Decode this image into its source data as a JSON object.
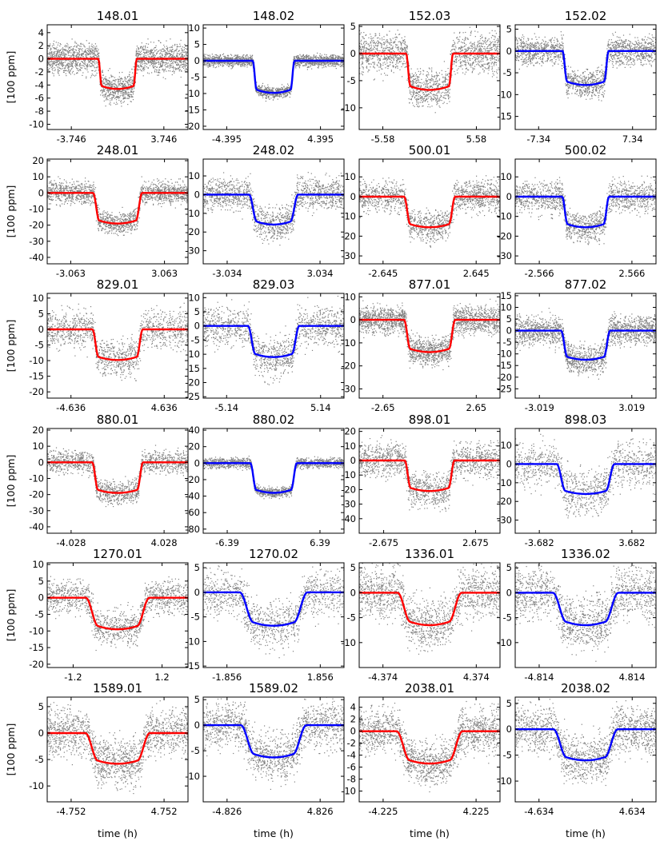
{
  "chart_data": [
    {
      "type": "scatter",
      "title": "148.01",
      "fit_color": "#ff0000",
      "xtick_labels": [
        "-3.746",
        "3.746"
      ],
      "xticks": [
        -3.746,
        3.746
      ],
      "xlim": [
        -5.7,
        5.7
      ],
      "ylim": [
        -10.8,
        5.2
      ],
      "yticks": [
        4,
        2,
        0,
        -2,
        -4,
        -6,
        -8,
        -10
      ],
      "ytick_labels": [
        "4",
        "2",
        "0",
        "-2",
        "-4",
        "-6",
        "-8",
        "-10"
      ],
      "depth": -4.6,
      "half_width": 1.3,
      "ingress": 0.25,
      "noise": 1.3,
      "points": 2000
    },
    {
      "type": "scatter",
      "title": "148.02",
      "fit_color": "#0000ff",
      "xtick_labels": [
        "-4.395",
        "4.395"
      ],
      "xticks": [
        -4.395,
        4.395
      ],
      "xlim": [
        -6.6,
        6.6
      ],
      "ylim": [
        -21,
        11
      ],
      "yticks": [
        10,
        5,
        0,
        -5,
        -10,
        -15,
        -20
      ],
      "ytick_labels": [
        "10",
        "5",
        "0",
        "-5",
        "-10",
        "-15",
        "-20"
      ],
      "depth": -9.8,
      "half_width": 1.6,
      "ingress": 0.35,
      "noise": 1.0,
      "points": 2000
    },
    {
      "type": "scatter",
      "title": "152.03",
      "fit_color": "#ff0000",
      "xtick_labels": [
        "-5.58",
        "5.58"
      ],
      "xticks": [
        -5.58,
        5.58
      ],
      "xlim": [
        -8.4,
        8.4
      ],
      "ylim": [
        -14,
        5.3
      ],
      "yticks": [
        5,
        0,
        -5,
        -10
      ],
      "ytick_labels": [
        "5",
        "0",
        "-5",
        "-10"
      ],
      "depth": -6.7,
      "half_width": 2.3,
      "ingress": 0.5,
      "noise": 2.0,
      "points": 1700
    },
    {
      "type": "scatter",
      "title": "152.02",
      "fit_color": "#0000ff",
      "xtick_labels": [
        "-7.34",
        "7.34"
      ],
      "xticks": [
        -7.34,
        7.34
      ],
      "xlim": [
        -11,
        11
      ],
      "ylim": [
        -18,
        6
      ],
      "yticks": [
        5,
        0,
        -5,
        -10,
        -15
      ],
      "ytick_labels": [
        "5",
        "0",
        "-5",
        "-10",
        "-15"
      ],
      "depth": -7.8,
      "half_width": 2.9,
      "ingress": 0.7,
      "noise": 1.8,
      "points": 1700
    },
    {
      "type": "scatter",
      "title": "248.01",
      "fit_color": "#ff0000",
      "xtick_labels": [
        "-3.063",
        "3.063"
      ],
      "xticks": [
        -3.063,
        3.063
      ],
      "xlim": [
        -4.6,
        4.6
      ],
      "ylim": [
        -44,
        21
      ],
      "yticks": [
        20,
        10,
        0,
        -10,
        -20,
        -30,
        -40
      ],
      "ytick_labels": [
        "20",
        "10",
        "0",
        "-10",
        "-20",
        "-30",
        "-40"
      ],
      "depth": -19,
      "half_width": 1.2,
      "ingress": 0.4,
      "noise": 4.0,
      "points": 1700
    },
    {
      "type": "scatter",
      "title": "248.02",
      "fit_color": "#0000ff",
      "xtick_labels": [
        "-3.034",
        "3.034"
      ],
      "xticks": [
        -3.034,
        3.034
      ],
      "xlim": [
        -4.6,
        4.6
      ],
      "ylim": [
        -37,
        19
      ],
      "yticks": [
        10,
        0,
        -10,
        -20,
        -30
      ],
      "ytick_labels": [
        "10",
        "0",
        "-10",
        "-20",
        "-30"
      ],
      "depth": -16,
      "half_width": 1.1,
      "ingress": 0.5,
      "noise": 5.0,
      "points": 1500
    },
    {
      "type": "scatter",
      "title": "500.01",
      "fit_color": "#ff0000",
      "xtick_labels": [
        "-2.645",
        "2.645"
      ],
      "xticks": [
        -2.645,
        2.645
      ],
      "xlim": [
        -4.0,
        4.0
      ],
      "ylim": [
        -34,
        19
      ],
      "yticks": [
        10,
        0,
        -10,
        -20,
        -30
      ],
      "ytick_labels": [
        "10",
        "0",
        "-10",
        "-20",
        "-30"
      ],
      "depth": -15.5,
      "half_width": 1.1,
      "ingress": 0.35,
      "noise": 4.5,
      "points": 1500
    },
    {
      "type": "scatter",
      "title": "500.02",
      "fit_color": "#0000ff",
      "xtick_labels": [
        "-2.566",
        "2.566"
      ],
      "xticks": [
        -2.566,
        2.566
      ],
      "xlim": [
        -3.9,
        3.9
      ],
      "ylim": [
        -34,
        19
      ],
      "yticks": [
        10,
        0,
        -10,
        -20,
        -30
      ],
      "ytick_labels": [
        "10",
        "0",
        "-10",
        "-20",
        "-30"
      ],
      "depth": -15.5,
      "half_width": 1.0,
      "ingress": 0.3,
      "noise": 4.5,
      "points": 1500
    },
    {
      "type": "scatter",
      "title": "829.01",
      "fit_color": "#ff0000",
      "xtick_labels": [
        "-4.636",
        "4.636"
      ],
      "xticks": [
        -4.636,
        4.636
      ],
      "xlim": [
        -7.0,
        7.0
      ],
      "ylim": [
        -22,
        11.5
      ],
      "yticks": [
        10,
        5,
        0,
        -5,
        -10,
        -15,
        -20
      ],
      "ytick_labels": [
        "10",
        "5",
        "0",
        "-5",
        "-10",
        "-15",
        "-20"
      ],
      "depth": -9.8,
      "half_width": 1.9,
      "ingress": 0.6,
      "noise": 3.5,
      "points": 1300
    },
    {
      "type": "scatter",
      "title": "829.03",
      "fit_color": "#0000ff",
      "xtick_labels": [
        "-5.14",
        "5.14"
      ],
      "xticks": [
        -5.14,
        5.14
      ],
      "xlim": [
        -7.7,
        7.7
      ],
      "ylim": [
        -25.5,
        11.5
      ],
      "yticks": [
        10,
        5,
        0,
        -5,
        -10,
        -15,
        -20,
        -25
      ],
      "ytick_labels": [
        "10",
        "5",
        "0",
        "-5",
        "-10",
        "-15",
        "-20",
        "-25"
      ],
      "depth": -11,
      "half_width": 2.0,
      "ingress": 0.8,
      "noise": 4.0,
      "points": 1300
    },
    {
      "type": "scatter",
      "title": "877.01",
      "fit_color": "#ff0000",
      "xtick_labels": [
        "-2.65",
        "2.65"
      ],
      "xticks": [
        -2.65,
        2.65
      ],
      "xlim": [
        -4.0,
        4.0
      ],
      "ylim": [
        -34,
        11.5
      ],
      "yticks": [
        10,
        0,
        -10,
        -20,
        -30
      ],
      "ytick_labels": [
        "10",
        "0",
        "-10",
        "-20",
        "-30"
      ],
      "depth": -14,
      "half_width": 1.1,
      "ingress": 0.35,
      "noise": 3.5,
      "points": 2100
    },
    {
      "type": "scatter",
      "title": "877.02",
      "fit_color": "#0000ff",
      "xtick_labels": [
        "-3.019",
        "3.019"
      ],
      "xticks": [
        -3.019,
        3.019
      ],
      "xlim": [
        -4.6,
        4.6
      ],
      "ylim": [
        -29,
        16
      ],
      "yticks": [
        15,
        10,
        5,
        0,
        -5,
        -10,
        -15,
        -20,
        -25
      ],
      "ytick_labels": [
        "15",
        "10",
        "5",
        "0",
        "-5",
        "-10",
        "-15",
        "-20",
        "-25"
      ],
      "depth": -12.5,
      "half_width": 1.2,
      "ingress": 0.4,
      "noise": 3.5,
      "points": 1900
    },
    {
      "type": "scatter",
      "title": "880.01",
      "fit_color": "#ff0000",
      "xtick_labels": [
        "-4.028",
        "4.028"
      ],
      "xticks": [
        -4.028,
        4.028
      ],
      "xlim": [
        -6.1,
        6.1
      ],
      "ylim": [
        -44,
        21
      ],
      "yticks": [
        20,
        10,
        0,
        -10,
        -20,
        -30,
        -40
      ],
      "ytick_labels": [
        "20",
        "10",
        "0",
        "-10",
        "-20",
        "-30",
        "-40"
      ],
      "depth": -19,
      "half_width": 1.7,
      "ingress": 0.5,
      "noise": 4.0,
      "points": 1400
    },
    {
      "type": "scatter",
      "title": "880.02",
      "fit_color": "#0000ff",
      "xtick_labels": [
        "-6.39",
        "6.39"
      ],
      "xticks": [
        -6.39,
        6.39
      ],
      "xlim": [
        -9.7,
        9.7
      ],
      "ylim": [
        -85,
        42
      ],
      "yticks": [
        40,
        20,
        0,
        -20,
        -40,
        -60,
        -80
      ],
      "ytick_labels": [
        "40",
        "20",
        "0",
        "-20",
        "-40",
        "-60",
        "-80"
      ],
      "depth": -36,
      "half_width": 2.4,
      "ingress": 0.8,
      "noise": 3.5,
      "points": 1500
    },
    {
      "type": "scatter",
      "title": "898.01",
      "fit_color": "#ff0000",
      "xtick_labels": [
        "-2.675",
        "2.675"
      ],
      "xticks": [
        -2.675,
        2.675
      ],
      "xlim": [
        -4.1,
        4.1
      ],
      "ylim": [
        -50,
        22
      ],
      "yticks": [
        20,
        10,
        0,
        -10,
        -20,
        -30,
        -40
      ],
      "ytick_labels": [
        "20",
        "10",
        "0",
        "-10",
        "-20",
        "-30",
        "-40"
      ],
      "depth": -21,
      "half_width": 1.1,
      "ingress": 0.35,
      "noise": 7.0,
      "points": 1500
    },
    {
      "type": "scatter",
      "title": "898.03",
      "fit_color": "#0000ff",
      "xtick_labels": [
        "-3.682",
        "3.682"
      ],
      "xticks": [
        -3.682,
        3.682
      ],
      "xlim": [
        -5.6,
        5.6
      ],
      "ylim": [
        -37,
        19
      ],
      "yticks": [
        10,
        0,
        -10,
        -20,
        -30
      ],
      "ytick_labels": [
        "10",
        "0",
        "-10",
        "-20",
        "-30"
      ],
      "depth": -16,
      "half_width": 1.6,
      "ingress": 0.7,
      "noise": 7.0,
      "points": 1200
    },
    {
      "type": "scatter",
      "title": "1270.01",
      "fit_color": "#ff0000",
      "xtick_labels": [
        "-1.2",
        "1.2"
      ],
      "xticks": [
        -1.2,
        1.2
      ],
      "xlim": [
        -1.9,
        1.9
      ],
      "ylim": [
        -21,
        10.5
      ],
      "yticks": [
        10,
        5,
        0,
        -5,
        -10,
        -15,
        -20
      ],
      "ytick_labels": [
        "10",
        "5",
        "0",
        "-5",
        "-10",
        "-15",
        "-20"
      ],
      "depth": -9.5,
      "half_width": 0.52,
      "ingress": 0.34,
      "noise": 3.0,
      "points": 1300
    },
    {
      "type": "scatter",
      "title": "1270.02",
      "fit_color": "#0000ff",
      "xtick_labels": [
        "-1.856",
        "1.856"
      ],
      "xticks": [
        -1.856,
        1.856
      ],
      "xlim": [
        -2.8,
        2.8
      ],
      "ylim": [
        -15.3,
        6
      ],
      "yticks": [
        5,
        0,
        -5,
        -10,
        -15
      ],
      "ytick_labels": [
        "5",
        "0",
        "-5",
        "-10",
        "-15"
      ],
      "depth": -6.8,
      "half_width": 0.8,
      "ingress": 0.55,
      "noise": 2.8,
      "points": 1200
    },
    {
      "type": "scatter",
      "title": "1336.01",
      "fit_color": "#ff0000",
      "xtick_labels": [
        "-4.374",
        "4.374"
      ],
      "xticks": [
        -4.374,
        4.374
      ],
      "xlim": [
        -6.6,
        6.6
      ],
      "ylim": [
        -15,
        6
      ],
      "yticks": [
        5,
        0,
        -5,
        -10
      ],
      "ytick_labels": [
        "5",
        "0",
        "-5",
        "-10"
      ],
      "depth": -6.5,
      "half_width": 1.8,
      "ingress": 1.2,
      "noise": 3.0,
      "points": 1500
    },
    {
      "type": "scatter",
      "title": "1336.02",
      "fit_color": "#0000ff",
      "xtick_labels": [
        "-4.814",
        "4.814"
      ],
      "xticks": [
        -4.814,
        4.814
      ],
      "xlim": [
        -7.3,
        7.3
      ],
      "ylim": [
        -15,
        6
      ],
      "yticks": [
        5,
        0,
        -5,
        -10
      ],
      "ytick_labels": [
        "5",
        "0",
        "-5",
        "-10"
      ],
      "depth": -6.5,
      "half_width": 2.0,
      "ingress": 1.4,
      "noise": 3.0,
      "points": 1500
    },
    {
      "type": "scatter",
      "title": "1589.01",
      "fit_color": "#ff0000",
      "xtick_labels": [
        "-4.752",
        "4.752"
      ],
      "xticks": [
        -4.752,
        4.752
      ],
      "xlim": [
        -7.2,
        7.2
      ],
      "ylim": [
        -13,
        6.8
      ],
      "yticks": [
        5,
        0,
        -5,
        -10
      ],
      "ytick_labels": [
        "5",
        "0",
        "-5",
        "-10"
      ],
      "depth": -5.8,
      "half_width": 2.0,
      "ingress": 1.3,
      "noise": 2.5,
      "points": 1600
    },
    {
      "type": "scatter",
      "title": "1589.02",
      "fit_color": "#0000ff",
      "xtick_labels": [
        "-4.826",
        "4.826"
      ],
      "xticks": [
        -4.826,
        4.826
      ],
      "xlim": [
        -7.3,
        7.3
      ],
      "ylim": [
        -15,
        5.5
      ],
      "yticks": [
        5,
        0,
        -5,
        -10
      ],
      "ytick_labels": [
        "5",
        "0",
        "-5",
        "-10"
      ],
      "depth": -6.3,
      "half_width": 2.0,
      "ingress": 1.4,
      "noise": 2.7,
      "points": 1500
    },
    {
      "type": "scatter",
      "title": "2038.01",
      "fit_color": "#ff0000",
      "xtick_labels": [
        "-4.225",
        "4.225"
      ],
      "xticks": [
        -4.225,
        4.225
      ],
      "xlim": [
        -6.4,
        6.4
      ],
      "ylim": [
        -11.8,
        5.7
      ],
      "yticks": [
        4,
        2,
        0,
        -2,
        -4,
        -6,
        -8,
        -10
      ],
      "ytick_labels": [
        "4",
        "2",
        "0",
        "-2",
        "-4",
        "-6",
        "-8",
        "-10"
      ],
      "depth": -5.4,
      "half_width": 1.8,
      "ingress": 1.2,
      "noise": 2.1,
      "points": 1700
    },
    {
      "type": "scatter",
      "title": "2038.02",
      "fit_color": "#0000ff",
      "xtick_labels": [
        "-4.634",
        "4.634"
      ],
      "xticks": [
        -4.634,
        4.634
      ],
      "xlim": [
        -7.0,
        7.0
      ],
      "ylim": [
        -14,
        6.2
      ],
      "yticks": [
        5,
        0,
        -5,
        -10
      ],
      "ytick_labels": [
        "5",
        "0",
        "-5",
        "-10"
      ],
      "depth": -6.0,
      "half_width": 1.9,
      "ingress": 1.3,
      "noise": 2.6,
      "points": 1600
    }
  ],
  "ylabel": "[100 ppm]",
  "xlabel": "time (h)",
  "colors": {
    "scatter": "#7f7f7f"
  }
}
